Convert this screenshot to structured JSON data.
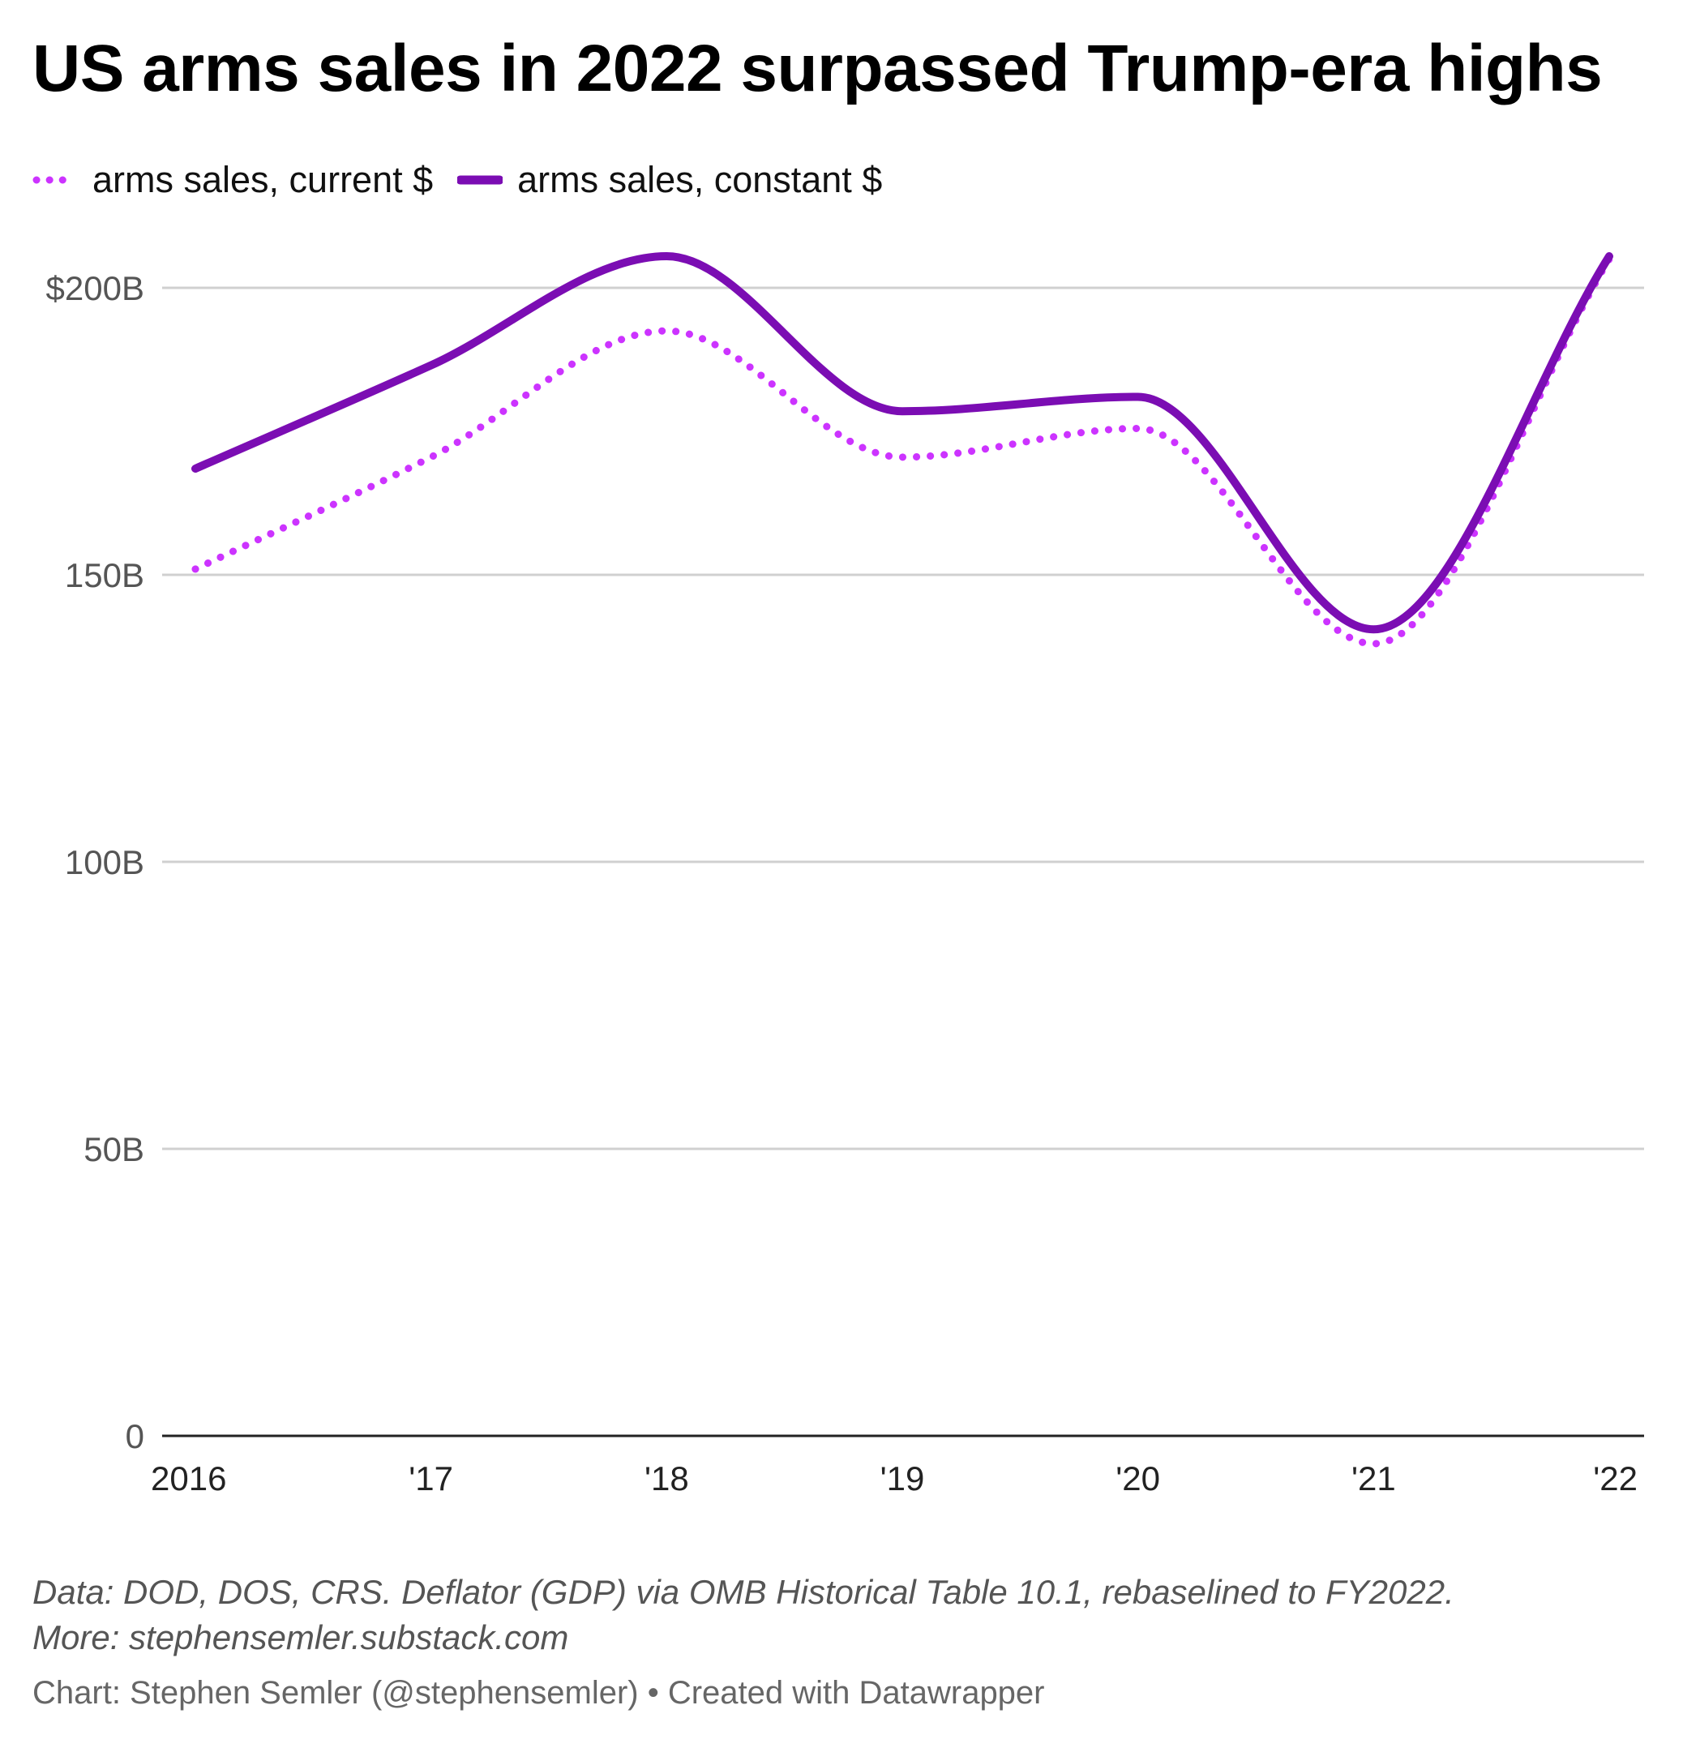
{
  "title": "US arms sales in 2022 surpassed Trump-era highs",
  "legend": [
    {
      "label": "arms sales, current $",
      "style": "dotted",
      "color": "#cc33ff"
    },
    {
      "label": "arms sales, constant $",
      "style": "solid",
      "color": "#7b0db3"
    }
  ],
  "notes": {
    "line1": "Data: DOD, DOS, CRS. Deflator (GDP) via OMB Historical Table 10.1, rebaselined to FY2022.",
    "line2": "More: stephensemler.substack.com"
  },
  "credit": "Chart: Stephen Semler (@stephensemler) • Created with Datawrapper",
  "chart_data": {
    "type": "line",
    "x": [
      2016,
      2017,
      2018,
      2019,
      2020,
      2021,
      2022
    ],
    "x_tick_labels": [
      "2016",
      "'17",
      "'18",
      "'19",
      "'20",
      "'21",
      "'22"
    ],
    "y_ticks": [
      0,
      50,
      100,
      150,
      200
    ],
    "y_tick_labels": [
      "0",
      "50B",
      "100B",
      "150B",
      "$200B"
    ],
    "ylim": [
      0,
      205
    ],
    "grid": true,
    "legend_position": "top-left",
    "series": [
      {
        "name": "arms sales, current $",
        "style": "dotted",
        "color": "#cc33ff",
        "values": [
          151,
          170.5,
          192.5,
          170.5,
          175.5,
          138,
          205
        ]
      },
      {
        "name": "arms sales, constant $",
        "style": "solid",
        "color": "#7b0db3",
        "values": [
          168.5,
          186.5,
          205.5,
          178.5,
          181,
          140.5,
          205.5
        ]
      }
    ]
  }
}
